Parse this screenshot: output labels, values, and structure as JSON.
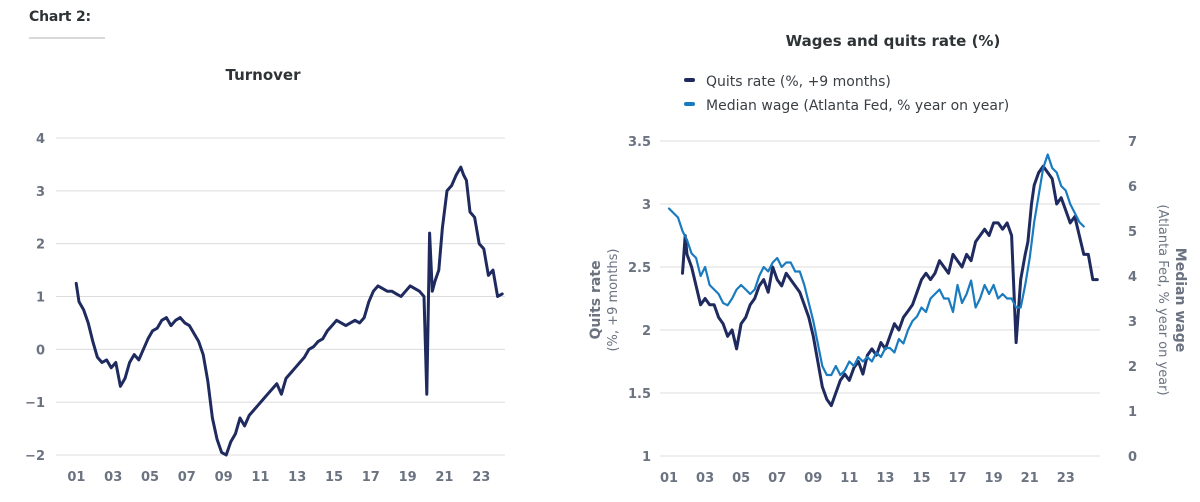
{
  "header": {
    "label": "Chart 2:"
  },
  "chart_data": [
    {
      "type": "line",
      "title": "Turnover",
      "xlabel": "",
      "ylabel": "",
      "x_tick_labels": [
        "01",
        "03",
        "05",
        "07",
        "09",
        "11",
        "13",
        "15",
        "17",
        "19",
        "21",
        "23"
      ],
      "x_ticks_years": [
        2001,
        2003,
        2005,
        2007,
        2009,
        2011,
        2013,
        2015,
        2017,
        2019,
        2021,
        2023
      ],
      "y_ticks": [
        4,
        3,
        2,
        1,
        0,
        -1,
        -2
      ],
      "y_tick_labels": [
        "4",
        "3",
        "2",
        "1",
        "0",
        "−1",
        "−2"
      ],
      "ylim": [
        -2,
        4
      ],
      "xlim": [
        2000.0,
        2024.4
      ],
      "grid": true,
      "series": [
        {
          "name": "Turnover",
          "color": "#1f2a5e",
          "x": [
            2001.1,
            2001.25,
            2001.5,
            2001.75,
            2002.0,
            2002.25,
            2002.5,
            2002.75,
            2003.0,
            2003.25,
            2003.5,
            2003.75,
            2004.0,
            2004.25,
            2004.5,
            2004.75,
            2005.0,
            2005.25,
            2005.5,
            2005.75,
            2006.0,
            2006.25,
            2006.5,
            2006.75,
            2007.0,
            2007.25,
            2007.5,
            2007.75,
            2008.0,
            2008.25,
            2008.5,
            2008.75,
            2009.0,
            2009.25,
            2009.5,
            2009.75,
            2010.0,
            2010.25,
            2010.5,
            2010.75,
            2011.0,
            2011.25,
            2011.5,
            2011.75,
            2012.0,
            2012.25,
            2012.5,
            2012.75,
            2013.0,
            2013.25,
            2013.5,
            2013.75,
            2014.0,
            2014.25,
            2014.5,
            2014.75,
            2015.0,
            2015.25,
            2015.5,
            2015.75,
            2016.0,
            2016.25,
            2016.5,
            2016.75,
            2017.0,
            2017.25,
            2017.5,
            2017.75,
            2018.0,
            2018.25,
            2018.5,
            2018.75,
            2019.0,
            2019.25,
            2019.5,
            2019.75,
            2020.0,
            2020.15,
            2020.3,
            2020.45,
            2020.6,
            2020.8,
            2021.0,
            2021.25,
            2021.5,
            2021.75,
            2022.0,
            2022.15,
            2022.3,
            2022.5,
            2022.75,
            2023.0,
            2023.25,
            2023.5,
            2023.75,
            2024.0,
            2024.25
          ],
          "values": [
            1.25,
            0.9,
            0.75,
            0.5,
            0.15,
            -0.15,
            -0.25,
            -0.2,
            -0.35,
            -0.25,
            -0.7,
            -0.55,
            -0.25,
            -0.1,
            -0.2,
            0.0,
            0.2,
            0.35,
            0.4,
            0.55,
            0.6,
            0.45,
            0.55,
            0.6,
            0.5,
            0.45,
            0.3,
            0.15,
            -0.1,
            -0.6,
            -1.3,
            -1.7,
            -1.95,
            -2.0,
            -1.75,
            -1.6,
            -1.3,
            -1.45,
            -1.25,
            -1.15,
            -1.05,
            -0.95,
            -0.85,
            -0.75,
            -0.65,
            -0.85,
            -0.55,
            -0.45,
            -0.35,
            -0.25,
            -0.15,
            0.0,
            0.05,
            0.15,
            0.2,
            0.35,
            0.45,
            0.55,
            0.5,
            0.45,
            0.5,
            0.55,
            0.5,
            0.6,
            0.9,
            1.1,
            1.2,
            1.15,
            1.1,
            1.1,
            1.05,
            1.0,
            1.1,
            1.2,
            1.15,
            1.1,
            1.0,
            -0.85,
            2.2,
            1.1,
            1.3,
            1.5,
            2.3,
            3.0,
            3.1,
            3.3,
            3.45,
            3.3,
            3.2,
            2.6,
            2.5,
            2.0,
            1.9,
            1.4,
            1.5,
            1.0,
            1.05
          ]
        }
      ]
    },
    {
      "type": "line",
      "title": "Wages and quits rate (%)",
      "legend": [
        "Quits rate (%, +9 months)",
        "Median wage (Atlanta Fed, % year on year)"
      ],
      "legend_position": "top-left",
      "ylabel_left": {
        "main": "Quits rate",
        "sub": "(%, +9 months)"
      },
      "ylabel_right": {
        "main": "Median wage",
        "sub": "(Atlanta Fed, % year on year)"
      },
      "x_tick_labels": [
        "01",
        "03",
        "05",
        "07",
        "09",
        "11",
        "13",
        "15",
        "17",
        "19",
        "21",
        "23"
      ],
      "x_ticks_years": [
        2001,
        2003,
        2005,
        2007,
        2009,
        2011,
        2013,
        2015,
        2017,
        2019,
        2021,
        2023
      ],
      "y_left_ticks": [
        3.5,
        3,
        2.5,
        2,
        1.5,
        1
      ],
      "y_left_tick_labels": [
        "3.5",
        "3",
        "2.5",
        "2",
        "1.5",
        "1"
      ],
      "y_right_ticks": [
        7,
        6,
        5,
        4,
        3,
        2,
        1,
        0
      ],
      "y_right_tick_labels": [
        "7",
        "6",
        "5",
        "4",
        "3",
        "2",
        "1",
        "0"
      ],
      "ylim_left": [
        1,
        3.5
      ],
      "ylim_right": [
        0,
        7
      ],
      "xlim": [
        2000.5,
        2024.9
      ],
      "grid": true,
      "series": [
        {
          "name": "Quits rate (%, +9 months)",
          "axis": "left",
          "color": "#1f2a5e",
          "x": [
            2001.75,
            2001.9,
            2002.0,
            2002.25,
            2002.5,
            2002.75,
            2003.0,
            2003.25,
            2003.5,
            2003.75,
            2004.0,
            2004.25,
            2004.5,
            2004.75,
            2005.0,
            2005.25,
            2005.5,
            2005.75,
            2006.0,
            2006.25,
            2006.5,
            2006.75,
            2007.0,
            2007.25,
            2007.5,
            2007.75,
            2008.0,
            2008.25,
            2008.5,
            2008.75,
            2009.0,
            2009.25,
            2009.5,
            2009.75,
            2010.0,
            2010.25,
            2010.5,
            2010.75,
            2011.0,
            2011.25,
            2011.5,
            2011.75,
            2012.0,
            2012.25,
            2012.5,
            2012.75,
            2013.0,
            2013.25,
            2013.5,
            2013.75,
            2014.0,
            2014.25,
            2014.5,
            2014.75,
            2015.0,
            2015.25,
            2015.5,
            2015.75,
            2016.0,
            2016.25,
            2016.5,
            2016.75,
            2017.0,
            2017.25,
            2017.5,
            2017.75,
            2018.0,
            2018.25,
            2018.5,
            2018.75,
            2019.0,
            2019.25,
            2019.5,
            2019.75,
            2020.0,
            2020.25,
            2020.5,
            2020.75,
            2020.9,
            2021.1,
            2021.25,
            2021.5,
            2021.75,
            2022.0,
            2022.25,
            2022.5,
            2022.75,
            2023.0,
            2023.25,
            2023.5,
            2023.75,
            2024.0,
            2024.25,
            2024.5,
            2024.75
          ],
          "values": [
            2.45,
            2.75,
            2.6,
            2.5,
            2.35,
            2.2,
            2.25,
            2.2,
            2.2,
            2.1,
            2.05,
            1.95,
            2.0,
            1.85,
            2.05,
            2.1,
            2.2,
            2.25,
            2.35,
            2.4,
            2.3,
            2.5,
            2.4,
            2.35,
            2.45,
            2.4,
            2.35,
            2.3,
            2.2,
            2.1,
            1.95,
            1.75,
            1.55,
            1.45,
            1.4,
            1.5,
            1.6,
            1.65,
            1.6,
            1.7,
            1.75,
            1.65,
            1.8,
            1.85,
            1.8,
            1.9,
            1.85,
            1.95,
            2.05,
            2.0,
            2.1,
            2.15,
            2.2,
            2.3,
            2.4,
            2.45,
            2.4,
            2.45,
            2.55,
            2.5,
            2.45,
            2.6,
            2.55,
            2.5,
            2.6,
            2.55,
            2.7,
            2.75,
            2.8,
            2.75,
            2.85,
            2.85,
            2.8,
            2.85,
            2.75,
            1.9,
            2.4,
            2.6,
            2.7,
            3.0,
            3.15,
            3.25,
            3.3,
            3.25,
            3.2,
            3.0,
            3.05,
            2.95,
            2.85,
            2.9,
            2.75,
            2.6,
            2.6,
            2.4,
            2.4
          ]
        },
        {
          "name": "Median wage (Atlanta Fed, % year on year)",
          "axis": "right",
          "color": "#1a7bbf",
          "x": [
            2001.0,
            2001.25,
            2001.5,
            2001.75,
            2002.0,
            2002.25,
            2002.5,
            2002.75,
            2003.0,
            2003.25,
            2003.5,
            2003.75,
            2004.0,
            2004.25,
            2004.5,
            2004.75,
            2005.0,
            2005.25,
            2005.5,
            2005.75,
            2006.0,
            2006.25,
            2006.5,
            2006.75,
            2007.0,
            2007.25,
            2007.5,
            2007.75,
            2008.0,
            2008.25,
            2008.5,
            2008.75,
            2009.0,
            2009.25,
            2009.5,
            2009.75,
            2010.0,
            2010.25,
            2010.5,
            2010.75,
            2011.0,
            2011.25,
            2011.5,
            2011.75,
            2012.0,
            2012.25,
            2012.5,
            2012.75,
            2013.0,
            2013.25,
            2013.5,
            2013.75,
            2014.0,
            2014.25,
            2014.5,
            2014.75,
            2015.0,
            2015.25,
            2015.5,
            2015.75,
            2016.0,
            2016.25,
            2016.5,
            2016.75,
            2017.0,
            2017.25,
            2017.5,
            2017.75,
            2018.0,
            2018.25,
            2018.5,
            2018.75,
            2019.0,
            2019.25,
            2019.5,
            2019.75,
            2020.0,
            2020.25,
            2020.5,
            2020.75,
            2021.0,
            2021.25,
            2021.5,
            2021.75,
            2022.0,
            2022.25,
            2022.5,
            2022.75,
            2023.0,
            2023.25,
            2023.5,
            2023.75,
            2024.0
          ],
          "values": [
            5.5,
            5.4,
            5.3,
            5.0,
            4.8,
            4.5,
            4.4,
            4.0,
            4.2,
            3.8,
            3.7,
            3.6,
            3.4,
            3.35,
            3.5,
            3.7,
            3.8,
            3.7,
            3.6,
            3.7,
            4.0,
            4.2,
            4.1,
            4.3,
            4.4,
            4.2,
            4.3,
            4.3,
            4.1,
            4.1,
            3.8,
            3.4,
            3.0,
            2.5,
            2.0,
            1.8,
            1.8,
            2.0,
            1.8,
            1.9,
            2.1,
            2.0,
            2.2,
            2.1,
            2.2,
            2.1,
            2.3,
            2.2,
            2.4,
            2.4,
            2.3,
            2.6,
            2.5,
            2.8,
            3.0,
            3.1,
            3.3,
            3.2,
            3.5,
            3.6,
            3.7,
            3.5,
            3.5,
            3.2,
            3.8,
            3.4,
            3.6,
            3.9,
            3.3,
            3.5,
            3.8,
            3.6,
            3.8,
            3.5,
            3.6,
            3.5,
            3.5,
            3.3,
            3.3,
            3.8,
            4.4,
            5.2,
            5.8,
            6.4,
            6.7,
            6.4,
            6.3,
            6.0,
            5.9,
            5.6,
            5.4,
            5.2,
            5.1
          ]
        }
      ]
    }
  ]
}
